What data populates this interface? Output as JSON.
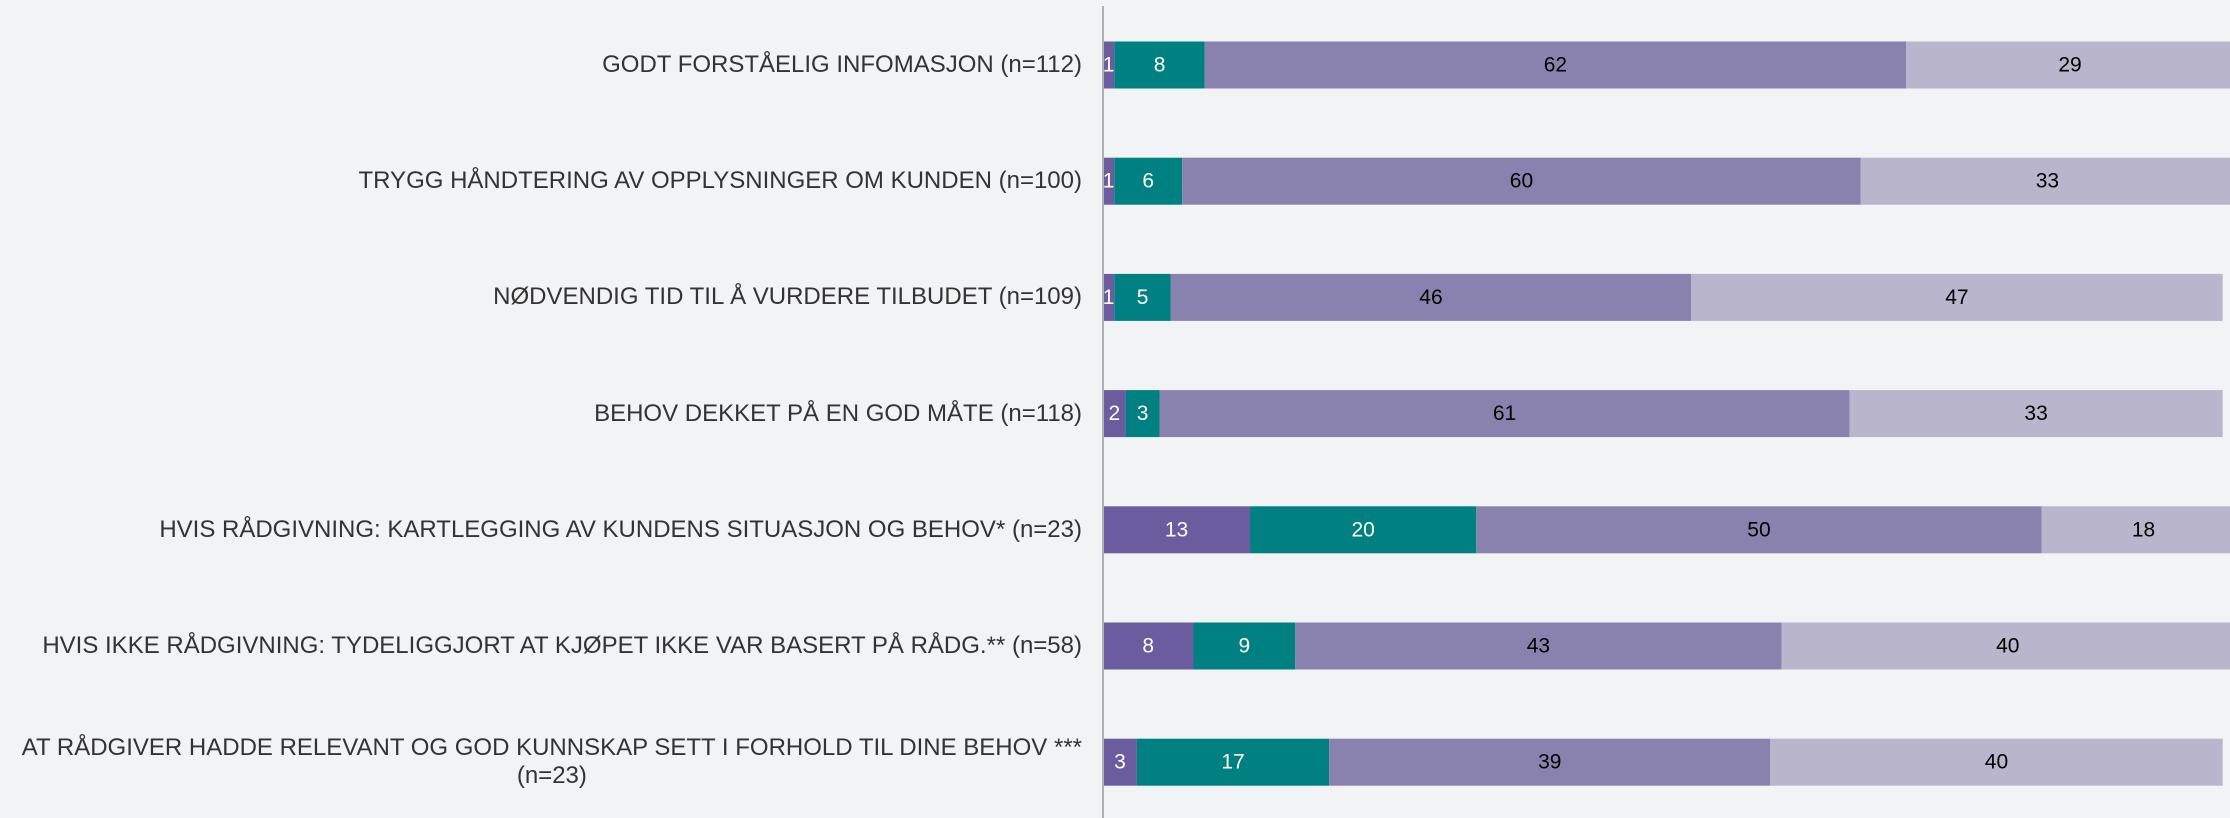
{
  "chart_data": {
    "type": "stacked-bar-horizontal",
    "categories": [
      "GODT FORSTÅELIG INFOMASJON (n=112)",
      "TRYGG HÅNDTERING AV OPPLYSNINGER OM KUNDEN (n=100)",
      "NØDVENDIG TID TIL Å VURDERE TILBUDET (n=109)",
      "BEHOV DEKKET PÅ EN GOD MÅTE (n=118)",
      "HVIS RÅDGIVNING: KARTLEGGING AV KUNDENS SITUASJON OG BEHOV* (n=23)",
      "HVIS IKKE RÅDGIVNING: TYDELIGGJORT AT KJØPET IKKE VAR BASERT PÅ RÅDG.** (n=58)",
      "AT RÅDGIVER HADDE RELEVANT OG GOD KUNNSKAP SETT I FORHOLD TIL DINE BEHOV ***\n(n=23)"
    ],
    "series": [
      {
        "color": "#6b5b9f",
        "label_color": "#ffffff",
        "values": [
          1,
          1,
          1,
          2,
          13,
          8,
          3
        ]
      },
      {
        "color": "#008080",
        "label_color": "#ffffff",
        "values": [
          8,
          6,
          5,
          3,
          20,
          9,
          17
        ]
      },
      {
        "color": "#8a82ae",
        "label_color": "#000000",
        "values": [
          62,
          60,
          46,
          61,
          50,
          43,
          39
        ]
      },
      {
        "color": "#b9b5cc",
        "label_color": "#000000",
        "values": [
          29,
          33,
          47,
          33,
          18,
          40,
          40
        ]
      }
    ],
    "xlim": [
      0,
      100
    ]
  }
}
